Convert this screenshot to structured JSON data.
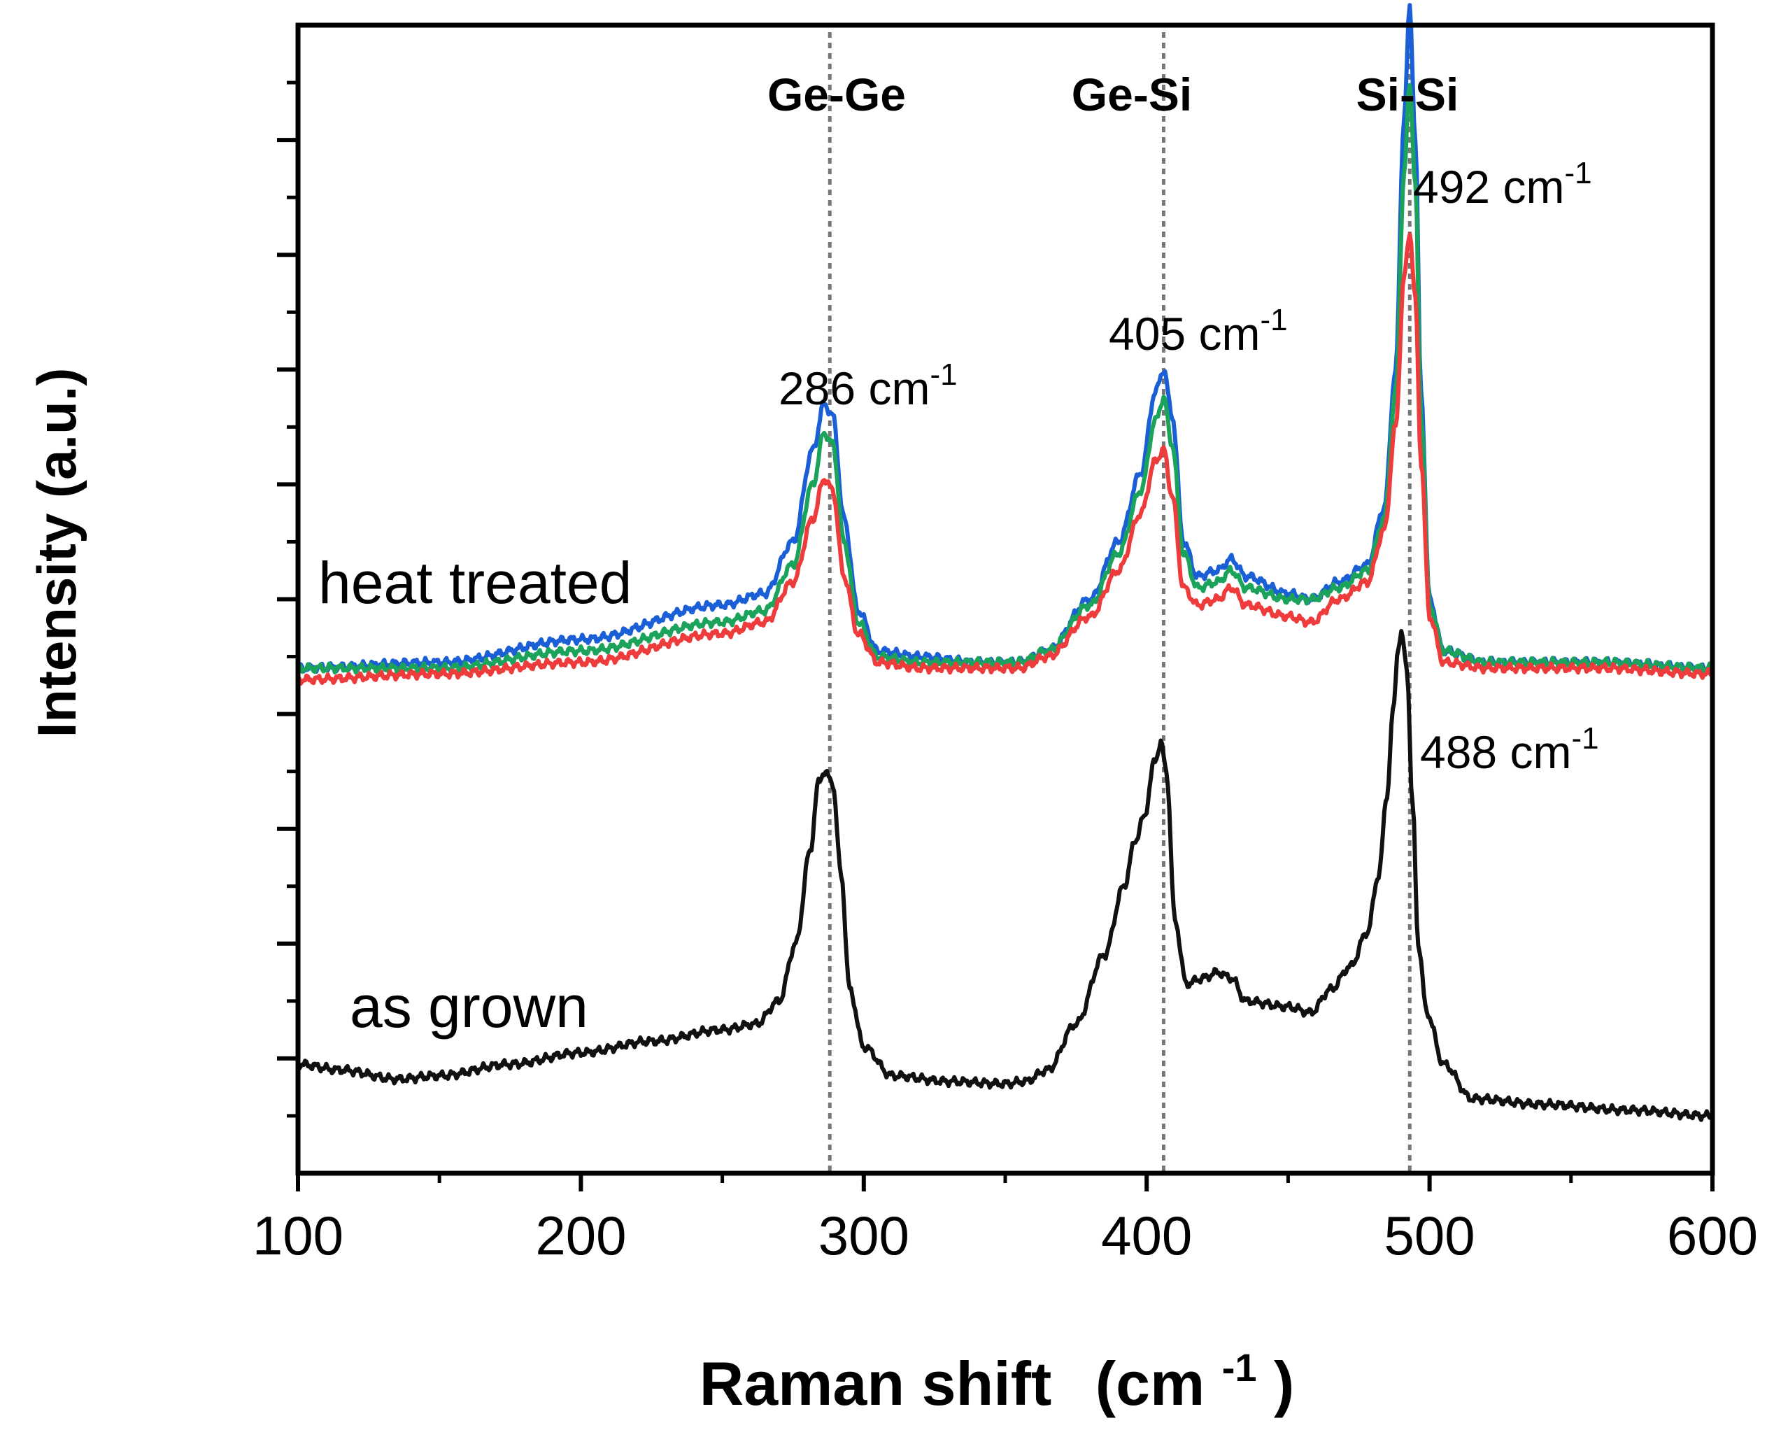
{
  "chart_data": {
    "type": "line",
    "xlabel": "Raman shift",
    "xlabel_unit": "(cm",
    "xlabel_unit_sup": "-1",
    "xlabel_unit_close": ")",
    "ylabel": "Intensity (a.u.)",
    "xlim": [
      100,
      600
    ],
    "ylim": [
      0,
      10
    ],
    "x_ticks": [
      100,
      200,
      300,
      400,
      500,
      600
    ],
    "y_ticks_unlabeled": true,
    "grid": false,
    "reference_lines": [
      {
        "x": 288,
        "label": "Ge-Ge"
      },
      {
        "x": 406,
        "label": "Ge-Si"
      },
      {
        "x": 493,
        "label": "Si-Si"
      }
    ],
    "annotations": [
      {
        "text": "286 cm",
        "sup": "-1"
      },
      {
        "text": "405 cm",
        "sup": "-1"
      },
      {
        "text": "492 cm",
        "sup": "-1"
      },
      {
        "text": "488 cm",
        "sup": "-1"
      },
      {
        "text": "heat treated"
      },
      {
        "text": "as grown"
      }
    ],
    "series": [
      {
        "name": "heat treated (blue)",
        "color": "#1a5fd6",
        "points": [
          [
            100,
            4.4
          ],
          [
            150,
            4.45
          ],
          [
            200,
            4.65
          ],
          [
            250,
            4.95
          ],
          [
            265,
            5.05
          ],
          [
            275,
            5.5
          ],
          [
            282,
            6.3
          ],
          [
            286,
            6.7
          ],
          [
            289,
            6.6
          ],
          [
            293,
            5.7
          ],
          [
            298,
            4.9
          ],
          [
            305,
            4.55
          ],
          [
            320,
            4.5
          ],
          [
            340,
            4.45
          ],
          [
            355,
            4.45
          ],
          [
            365,
            4.55
          ],
          [
            380,
            5.0
          ],
          [
            390,
            5.5
          ],
          [
            398,
            6.1
          ],
          [
            403,
            6.8
          ],
          [
            406,
            7.0
          ],
          [
            409,
            6.6
          ],
          [
            413,
            5.5
          ],
          [
            418,
            5.2
          ],
          [
            425,
            5.25
          ],
          [
            430,
            5.35
          ],
          [
            435,
            5.2
          ],
          [
            450,
            5.05
          ],
          [
            458,
            5.0
          ],
          [
            468,
            5.15
          ],
          [
            478,
            5.3
          ],
          [
            484,
            5.8
          ],
          [
            488,
            7.0
          ],
          [
            491,
            9.2
          ],
          [
            493,
            10.15
          ],
          [
            495,
            9.0
          ],
          [
            497,
            6.8
          ],
          [
            500,
            5.0
          ],
          [
            505,
            4.55
          ],
          [
            520,
            4.45
          ],
          [
            560,
            4.45
          ],
          [
            600,
            4.4
          ]
        ]
      },
      {
        "name": "heat treated (green)",
        "color": "#1ba35b",
        "points": [
          [
            100,
            4.4
          ],
          [
            150,
            4.4
          ],
          [
            200,
            4.55
          ],
          [
            250,
            4.8
          ],
          [
            265,
            4.9
          ],
          [
            275,
            5.3
          ],
          [
            282,
            6.0
          ],
          [
            286,
            6.45
          ],
          [
            289,
            6.35
          ],
          [
            293,
            5.5
          ],
          [
            298,
            4.8
          ],
          [
            305,
            4.5
          ],
          [
            320,
            4.45
          ],
          [
            340,
            4.45
          ],
          [
            355,
            4.45
          ],
          [
            365,
            4.55
          ],
          [
            380,
            4.95
          ],
          [
            390,
            5.4
          ],
          [
            398,
            5.95
          ],
          [
            403,
            6.55
          ],
          [
            406,
            6.75
          ],
          [
            409,
            6.35
          ],
          [
            413,
            5.4
          ],
          [
            418,
            5.1
          ],
          [
            425,
            5.15
          ],
          [
            430,
            5.25
          ],
          [
            435,
            5.1
          ],
          [
            450,
            5.0
          ],
          [
            458,
            5.0
          ],
          [
            468,
            5.1
          ],
          [
            478,
            5.25
          ],
          [
            484,
            5.7
          ],
          [
            488,
            6.8
          ],
          [
            491,
            8.7
          ],
          [
            493,
            9.5
          ],
          [
            495,
            8.6
          ],
          [
            497,
            6.6
          ],
          [
            500,
            4.95
          ],
          [
            505,
            4.55
          ],
          [
            520,
            4.45
          ],
          [
            560,
            4.45
          ],
          [
            600,
            4.4
          ]
        ]
      },
      {
        "name": "heat treated (red)",
        "color": "#ee3b3b",
        "points": [
          [
            100,
            4.3
          ],
          [
            150,
            4.35
          ],
          [
            200,
            4.45
          ],
          [
            250,
            4.7
          ],
          [
            265,
            4.8
          ],
          [
            275,
            5.15
          ],
          [
            282,
            5.7
          ],
          [
            286,
            6.05
          ],
          [
            289,
            5.95
          ],
          [
            293,
            5.2
          ],
          [
            298,
            4.7
          ],
          [
            305,
            4.45
          ],
          [
            320,
            4.4
          ],
          [
            340,
            4.4
          ],
          [
            355,
            4.4
          ],
          [
            365,
            4.5
          ],
          [
            380,
            4.85
          ],
          [
            390,
            5.25
          ],
          [
            398,
            5.75
          ],
          [
            403,
            6.2
          ],
          [
            406,
            6.3
          ],
          [
            409,
            5.9
          ],
          [
            413,
            5.1
          ],
          [
            418,
            4.95
          ],
          [
            425,
            5.0
          ],
          [
            430,
            5.1
          ],
          [
            435,
            4.95
          ],
          [
            450,
            4.85
          ],
          [
            458,
            4.8
          ],
          [
            468,
            5.0
          ],
          [
            478,
            5.15
          ],
          [
            484,
            5.6
          ],
          [
            488,
            6.5
          ],
          [
            491,
            7.8
          ],
          [
            493,
            8.2
          ],
          [
            495,
            7.6
          ],
          [
            497,
            6.2
          ],
          [
            500,
            4.85
          ],
          [
            505,
            4.45
          ],
          [
            520,
            4.4
          ],
          [
            560,
            4.4
          ],
          [
            600,
            4.35
          ]
        ]
      },
      {
        "name": "as grown",
        "color": "#111111",
        "points": [
          [
            100,
            0.95
          ],
          [
            115,
            0.9
          ],
          [
            135,
            0.82
          ],
          [
            150,
            0.85
          ],
          [
            175,
            0.95
          ],
          [
            200,
            1.05
          ],
          [
            225,
            1.15
          ],
          [
            250,
            1.25
          ],
          [
            262,
            1.3
          ],
          [
            270,
            1.5
          ],
          [
            276,
            2.0
          ],
          [
            281,
            2.8
          ],
          [
            284,
            3.4
          ],
          [
            286,
            3.5
          ],
          [
            289,
            3.4
          ],
          [
            292,
            2.6
          ],
          [
            295,
            1.6
          ],
          [
            300,
            1.1
          ],
          [
            310,
            0.85
          ],
          [
            330,
            0.8
          ],
          [
            350,
            0.78
          ],
          [
            357,
            0.8
          ],
          [
            365,
            0.9
          ],
          [
            375,
            1.3
          ],
          [
            385,
            1.9
          ],
          [
            392,
            2.5
          ],
          [
            396,
            2.9
          ],
          [
            399,
            3.1
          ],
          [
            403,
            3.6
          ],
          [
            405,
            3.75
          ],
          [
            407,
            3.5
          ],
          [
            410,
            2.2
          ],
          [
            414,
            1.65
          ],
          [
            420,
            1.7
          ],
          [
            425,
            1.75
          ],
          [
            430,
            1.7
          ],
          [
            435,
            1.5
          ],
          [
            450,
            1.45
          ],
          [
            458,
            1.4
          ],
          [
            465,
            1.6
          ],
          [
            472,
            1.8
          ],
          [
            478,
            2.1
          ],
          [
            482,
            2.6
          ],
          [
            485,
            3.3
          ],
          [
            487,
            4.0
          ],
          [
            489,
            4.6
          ],
          [
            490,
            4.7
          ],
          [
            492,
            4.4
          ],
          [
            494,
            3.2
          ],
          [
            496,
            2.0
          ],
          [
            499,
            1.4
          ],
          [
            505,
            0.95
          ],
          [
            515,
            0.65
          ],
          [
            540,
            0.6
          ],
          [
            570,
            0.55
          ],
          [
            600,
            0.5
          ]
        ]
      }
    ]
  }
}
